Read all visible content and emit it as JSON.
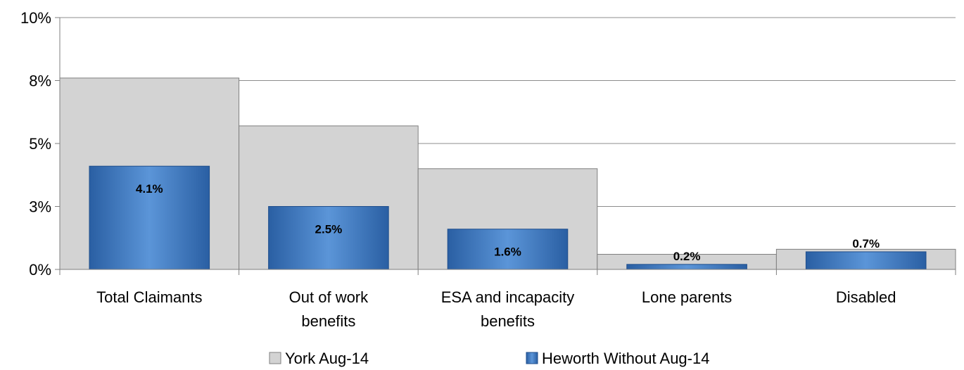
{
  "chart_data": {
    "type": "bar",
    "categories": [
      [
        "Total Claimants"
      ],
      [
        "Out of work",
        "benefits"
      ],
      [
        "ESA and incapacity",
        "benefits"
      ],
      [
        "Lone parents"
      ],
      [
        "Disabled"
      ]
    ],
    "series": [
      {
        "name": "York Aug-14",
        "values": [
          7.6,
          5.7,
          4.0,
          0.6,
          0.8
        ],
        "color": "#d3d3d3"
      },
      {
        "name": "Heworth Without Aug-14",
        "values": [
          4.1,
          2.5,
          1.6,
          0.2,
          0.7
        ],
        "data_labels": [
          "4.1%",
          "2.5%",
          "1.6%",
          "0.2%",
          "0.7%"
        ],
        "color": "#3b78c2"
      }
    ],
    "y_ticks": [
      0,
      2.5,
      5,
      7.5,
      10
    ],
    "y_tick_labels": [
      "0%",
      "3%",
      "5%",
      "8%",
      "10%"
    ],
    "ylim": [
      0,
      10
    ],
    "grid": true,
    "legend_position": "bottom"
  }
}
